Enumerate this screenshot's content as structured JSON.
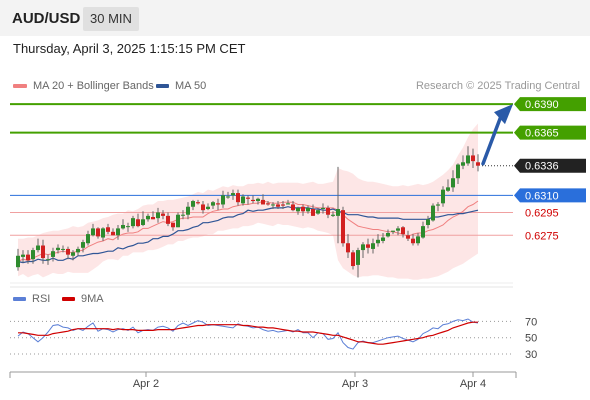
{
  "header": {
    "pair": "AUD/USD",
    "timeframe": "30 MIN"
  },
  "datetime": "Thursday, April 3, 2025 1:15:15 PM CET",
  "legend": {
    "ma20": "MA 20 + Bollinger Bands",
    "ma50": "MA 50",
    "rsi": "RSI",
    "ma9": "9MA",
    "credit": "Research © 2025 Trading Central"
  },
  "colors": {
    "ma20": "#f08080",
    "ma50": "#2f5596",
    "green": "#44a000",
    "blue": "#2a6fdb",
    "red": "#d00000",
    "dark": "#222222",
    "rsi": "#5b7fd6",
    "band": "#fde2e2"
  },
  "chart_data": {
    "type": "candlestick",
    "y_range": [
      0.6234,
      0.6398
    ],
    "current_price": "0.6336",
    "levels": [
      {
        "value": 0.639,
        "label": "0.6390",
        "kind": "resistance"
      },
      {
        "value": 0.6365,
        "label": "0.6365",
        "kind": "resistance"
      },
      {
        "value": 0.631,
        "label": "0.6310",
        "kind": "pivot"
      },
      {
        "value": 0.6295,
        "label": "0.6295",
        "kind": "support"
      },
      {
        "value": 0.6275,
        "label": "0.6275",
        "kind": "support"
      }
    ],
    "x_labels": [
      "Apr 2",
      "Apr 3",
      "Apr 4"
    ],
    "rsi_levels": [
      {
        "value": 70,
        "label": "70"
      },
      {
        "value": 50,
        "label": "50"
      },
      {
        "value": 30,
        "label": "30"
      }
    ],
    "candles": [
      [
        0.6247,
        0.6257,
        0.6263,
        0.6244
      ],
      [
        0.6256,
        0.6258,
        0.6262,
        0.6251
      ],
      [
        0.6258,
        0.6253,
        0.6262,
        0.625
      ],
      [
        0.6254,
        0.6262,
        0.6264,
        0.625
      ],
      [
        0.6262,
        0.6266,
        0.6272,
        0.626
      ],
      [
        0.6266,
        0.6255,
        0.6271,
        0.625
      ],
      [
        0.6254,
        0.6254,
        0.6258,
        0.6249
      ],
      [
        0.6256,
        0.6261,
        0.6264,
        0.6252
      ],
      [
        0.6262,
        0.6264,
        0.6267,
        0.6259
      ],
      [
        0.6263,
        0.6263,
        0.6266,
        0.626
      ],
      [
        0.6263,
        0.6258,
        0.6265,
        0.6254
      ],
      [
        0.6257,
        0.626,
        0.6262,
        0.6253
      ],
      [
        0.626,
        0.6263,
        0.6265,
        0.6257
      ],
      [
        0.6264,
        0.6269,
        0.6271,
        0.626
      ],
      [
        0.6268,
        0.6276,
        0.6279,
        0.6266
      ],
      [
        0.6275,
        0.6281,
        0.6285,
        0.6274
      ],
      [
        0.6281,
        0.6274,
        0.6282,
        0.6272
      ],
      [
        0.6273,
        0.6281,
        0.6282,
        0.627
      ],
      [
        0.6282,
        0.6278,
        0.6285,
        0.6276
      ],
      [
        0.6278,
        0.6275,
        0.6281,
        0.6275
      ],
      [
        0.6275,
        0.6281,
        0.6284,
        0.6271
      ],
      [
        0.6281,
        0.6284,
        0.6289,
        0.628
      ],
      [
        0.6283,
        0.6283,
        0.6286,
        0.6278
      ],
      [
        0.6283,
        0.629,
        0.6292,
        0.6281
      ],
      [
        0.6289,
        0.6283,
        0.6294,
        0.6282
      ],
      [
        0.6284,
        0.6289,
        0.6296,
        0.6283
      ],
      [
        0.6289,
        0.6292,
        0.6294,
        0.6287
      ],
      [
        0.6291,
        0.6289,
        0.6296,
        0.6289
      ],
      [
        0.629,
        0.6295,
        0.6299,
        0.6286
      ],
      [
        0.6294,
        0.6292,
        0.6297,
        0.6289
      ],
      [
        0.6292,
        0.6285,
        0.6295,
        0.6283
      ],
      [
        0.6286,
        0.6282,
        0.6286,
        0.6279
      ],
      [
        0.6282,
        0.6293,
        0.6295,
        0.6282
      ],
      [
        0.6293,
        0.6293,
        0.6297,
        0.6289
      ],
      [
        0.6293,
        0.63,
        0.6304,
        0.6289
      ],
      [
        0.63,
        0.6305,
        0.6306,
        0.6297
      ],
      [
        0.6304,
        0.6303,
        0.6306,
        0.6302
      ],
      [
        0.6302,
        0.6297,
        0.6305,
        0.6294
      ],
      [
        0.6298,
        0.63,
        0.6303,
        0.6297
      ],
      [
        0.6301,
        0.6304,
        0.6305,
        0.6298
      ],
      [
        0.6303,
        0.6302,
        0.6307,
        0.6297
      ],
      [
        0.6302,
        0.631,
        0.6314,
        0.6299
      ],
      [
        0.6309,
        0.6309,
        0.6313,
        0.6307
      ],
      [
        0.631,
        0.6312,
        0.6315,
        0.6306
      ],
      [
        0.6312,
        0.6304,
        0.6315,
        0.6301
      ],
      [
        0.6303,
        0.6309,
        0.6311,
        0.6301
      ],
      [
        0.6308,
        0.6307,
        0.631,
        0.6302
      ],
      [
        0.6306,
        0.6305,
        0.631,
        0.6303
      ],
      [
        0.6305,
        0.6307,
        0.6308,
        0.6302
      ],
      [
        0.6306,
        0.6302,
        0.6311,
        0.6302
      ],
      [
        0.6303,
        0.6302,
        0.6305,
        0.6301
      ],
      [
        0.6302,
        0.6302,
        0.6304,
        0.6298
      ],
      [
        0.6302,
        0.63,
        0.6305,
        0.6298
      ],
      [
        0.6302,
        0.6301,
        0.6305,
        0.6298
      ],
      [
        0.6302,
        0.6303,
        0.6306,
        0.6302
      ],
      [
        0.6302,
        0.6297,
        0.6305,
        0.6296
      ],
      [
        0.6296,
        0.6299,
        0.63,
        0.6293
      ],
      [
        0.63,
        0.6296,
        0.6302,
        0.6292
      ],
      [
        0.6296,
        0.6299,
        0.6301,
        0.6294
      ],
      [
        0.6298,
        0.6292,
        0.6302,
        0.6292
      ],
      [
        0.6294,
        0.6297,
        0.6299,
        0.6293
      ],
      [
        0.6298,
        0.6299,
        0.6303,
        0.6294
      ],
      [
        0.6299,
        0.6293,
        0.6301,
        0.629
      ],
      [
        0.6292,
        0.6293,
        0.6296,
        0.6291
      ],
      [
        0.6292,
        0.6298,
        0.6335,
        0.6268
      ],
      [
        0.6297,
        0.6268,
        0.63,
        0.6265
      ],
      [
        0.6268,
        0.626,
        0.6276,
        0.6255
      ],
      [
        0.626,
        0.6248,
        0.6262,
        0.6245
      ],
      [
        0.6249,
        0.6262,
        0.6264,
        0.6238
      ],
      [
        0.6262,
        0.6267,
        0.6269,
        0.6255
      ],
      [
        0.6267,
        0.6264,
        0.6272,
        0.6259
      ],
      [
        0.6263,
        0.6268,
        0.6272,
        0.6259
      ],
      [
        0.6268,
        0.6271,
        0.6276,
        0.6265
      ],
      [
        0.627,
        0.6273,
        0.6277,
        0.6268
      ],
      [
        0.6274,
        0.6277,
        0.628,
        0.6273
      ],
      [
        0.6278,
        0.6279,
        0.6279,
        0.6276
      ],
      [
        0.6279,
        0.6281,
        0.6283,
        0.6275
      ],
      [
        0.6282,
        0.6276,
        0.6283,
        0.6273
      ],
      [
        0.6275,
        0.6272,
        0.6279,
        0.627
      ],
      [
        0.6272,
        0.6268,
        0.6276,
        0.6266
      ],
      [
        0.6268,
        0.6274,
        0.6277,
        0.6266
      ],
      [
        0.6273,
        0.6283,
        0.6287,
        0.6272
      ],
      [
        0.6284,
        0.6289,
        0.6292,
        0.6281
      ],
      [
        0.6288,
        0.6301,
        0.6303,
        0.6287
      ],
      [
        0.6301,
        0.6302,
        0.6304,
        0.6296
      ],
      [
        0.6303,
        0.6315,
        0.6318,
        0.63
      ],
      [
        0.6314,
        0.6317,
        0.6324,
        0.6313
      ],
      [
        0.6317,
        0.6325,
        0.6332,
        0.6313
      ],
      [
        0.6325,
        0.6337,
        0.6338,
        0.632
      ],
      [
        0.6336,
        0.6339,
        0.6345,
        0.6333
      ],
      [
        0.6338,
        0.6345,
        0.6353,
        0.6336
      ],
      [
        0.6345,
        0.634,
        0.6351,
        0.6334
      ],
      [
        0.6339,
        0.6336,
        0.6346,
        0.6331
      ]
    ],
    "ma20": [
      0.6252,
      0.6254,
      0.6253,
      0.6255,
      0.6257,
      0.6259,
      0.6258,
      0.6259,
      0.626,
      0.6261,
      0.626,
      0.626,
      0.6261,
      0.6262,
      0.6265,
      0.6267,
      0.6269,
      0.627,
      0.6272,
      0.6271,
      0.6274,
      0.6276,
      0.6277,
      0.6277,
      0.6278,
      0.6281,
      0.6281,
      0.6283,
      0.6285,
      0.6287,
      0.6286,
      0.6287,
      0.6289,
      0.629,
      0.629,
      0.6291,
      0.6291,
      0.6291,
      0.6294,
      0.6296,
      0.6297,
      0.6298,
      0.6298,
      0.63,
      0.6301,
      0.6302,
      0.6302,
      0.6303,
      0.6303,
      0.6305,
      0.6304,
      0.6303,
      0.6303,
      0.6304,
      0.6304,
      0.6304,
      0.6302,
      0.6302,
      0.6301,
      0.63,
      0.6299,
      0.6299,
      0.6299,
      0.6299,
      0.6297,
      0.6293,
      0.6289,
      0.6286,
      0.6283,
      0.6282,
      0.6281,
      0.628,
      0.628,
      0.6279,
      0.6278,
      0.6278,
      0.6277,
      0.6276,
      0.6274,
      0.6276,
      0.6277,
      0.6277,
      0.6279,
      0.628,
      0.6282,
      0.6284,
      0.6288,
      0.6291,
      0.6293,
      0.6296,
      0.63,
      0.6302,
      0.6305
    ],
    "ma50": [
      0.6252,
      0.6251,
      0.6252,
      0.6252,
      0.6254,
      0.6253,
      0.6253,
      0.6255,
      0.6253,
      0.6253,
      0.6255,
      0.6254,
      0.6257,
      0.6257,
      0.6258,
      0.6259,
      0.6259,
      0.626,
      0.6261,
      0.6261,
      0.6264,
      0.6263,
      0.6265,
      0.6266,
      0.6268,
      0.6268,
      0.6269,
      0.6272,
      0.6272,
      0.6274,
      0.6274,
      0.6276,
      0.6279,
      0.6279,
      0.628,
      0.6282,
      0.6283,
      0.6286,
      0.6286,
      0.6287,
      0.6288,
      0.629,
      0.6291,
      0.6291,
      0.6293,
      0.6294,
      0.6297,
      0.6296,
      0.6297,
      0.6297,
      0.6298,
      0.6299,
      0.6299,
      0.6299,
      0.63,
      0.6299,
      0.6299,
      0.6299,
      0.6299,
      0.6298,
      0.6298,
      0.6297,
      0.6297,
      0.6298,
      0.6296,
      0.6295,
      0.6293,
      0.6293,
      0.6293,
      0.6292,
      0.6291,
      0.6291,
      0.629,
      0.629,
      0.629,
      0.629,
      0.629,
      0.6289,
      0.6289,
      0.6289,
      0.6289,
      0.6289,
      0.6289,
      0.6291,
      0.6291,
      0.6292,
      0.6293,
      0.6293,
      0.6294,
      0.6294,
      0.6295,
      0.6296,
      0.6297
    ],
    "bb_upper": [
      0.6272,
      0.6272,
      0.6273,
      0.6273,
      0.6275,
      0.6277,
      0.6278,
      0.6279,
      0.6279,
      0.628,
      0.6281,
      0.6283,
      0.6282,
      0.6283,
      0.6286,
      0.6287,
      0.6288,
      0.629,
      0.6291,
      0.6293,
      0.6294,
      0.6294,
      0.6297,
      0.6296,
      0.6298,
      0.6301,
      0.6302,
      0.6302,
      0.6305,
      0.6305,
      0.6306,
      0.6306,
      0.6307,
      0.6308,
      0.6309,
      0.6311,
      0.6313,
      0.6312,
      0.6315,
      0.6314,
      0.6316,
      0.6318,
      0.6317,
      0.6319,
      0.6318,
      0.6318,
      0.632,
      0.632,
      0.6321,
      0.632,
      0.6322,
      0.632,
      0.6321,
      0.6321,
      0.6321,
      0.6321,
      0.6321,
      0.632,
      0.6321,
      0.6322,
      0.632,
      0.632,
      0.6321,
      0.6322,
      0.6334,
      0.6332,
      0.6331,
      0.6329,
      0.6325,
      0.6323,
      0.6322,
      0.6322,
      0.6321,
      0.632,
      0.6319,
      0.6318,
      0.6318,
      0.6319,
      0.6318,
      0.6319,
      0.632,
      0.6319,
      0.632,
      0.6322,
      0.6325,
      0.6328,
      0.6332,
      0.6337,
      0.6345,
      0.6352,
      0.6361,
      0.6368,
      0.6373
    ],
    "bb_lower": [
      0.6239,
      0.6241,
      0.6238,
      0.624,
      0.6241,
      0.6238,
      0.624,
      0.6242,
      0.6241,
      0.6241,
      0.6243,
      0.6242,
      0.6242,
      0.6242,
      0.6242,
      0.6245,
      0.6248,
      0.6252,
      0.6254,
      0.6254,
      0.6253,
      0.6257,
      0.6257,
      0.626,
      0.626,
      0.626,
      0.6262,
      0.6262,
      0.6263,
      0.6265,
      0.6267,
      0.6267,
      0.627,
      0.627,
      0.6272,
      0.6273,
      0.6273,
      0.6274,
      0.6276,
      0.6276,
      0.6279,
      0.6279,
      0.628,
      0.6281,
      0.6281,
      0.6283,
      0.6283,
      0.6284,
      0.6286,
      0.6285,
      0.6284,
      0.6283,
      0.6285,
      0.6284,
      0.6284,
      0.6283,
      0.6282,
      0.6281,
      0.6282,
      0.6281,
      0.6279,
      0.6278,
      0.6277,
      0.6275,
      0.6253,
      0.6246,
      0.6243,
      0.624,
      0.6238,
      0.6239,
      0.6239,
      0.624,
      0.624,
      0.6239,
      0.6238,
      0.6238,
      0.6237,
      0.6237,
      0.6237,
      0.6236,
      0.6236,
      0.6237,
      0.6237,
      0.6238,
      0.6239,
      0.6241,
      0.6243,
      0.6246,
      0.6248,
      0.625,
      0.6253,
      0.6256,
      0.6259
    ],
    "rsi": [
      52,
      57,
      55,
      50,
      45,
      50,
      57,
      65,
      66,
      63,
      62,
      59,
      61,
      59,
      64,
      68,
      58,
      61,
      60,
      57,
      60,
      61,
      59,
      63,
      56,
      59,
      60,
      59,
      63,
      64,
      62,
      58,
      65,
      68,
      65,
      68,
      71,
      69,
      65,
      66,
      65,
      64,
      63,
      62,
      67,
      65,
      64,
      62,
      63,
      60,
      58,
      59,
      57,
      58,
      59,
      57,
      60,
      56,
      56,
      50,
      56,
      55,
      48,
      49,
      56,
      44,
      38,
      36,
      44,
      46,
      44,
      44,
      46,
      48,
      50,
      51,
      52,
      49,
      47,
      45,
      48,
      55,
      58,
      62,
      61,
      66,
      67,
      70,
      72,
      71,
      73,
      69,
      68
    ],
    "rsi_ma9": [
      56,
      56,
      55,
      54,
      53,
      53,
      53,
      55,
      56,
      57,
      58,
      60,
      61,
      61,
      61,
      61,
      61,
      61,
      61,
      60,
      61,
      60,
      60,
      60,
      59,
      59,
      59,
      59,
      60,
      60,
      60,
      60,
      61,
      62,
      63,
      64,
      65,
      65,
      66,
      66,
      66,
      66,
      66,
      66,
      66,
      65,
      65,
      64,
      63,
      63,
      62,
      62,
      61,
      60,
      59,
      58,
      58,
      57,
      57,
      57,
      56,
      55,
      54,
      53,
      53,
      51,
      49,
      47,
      45,
      45,
      44,
      43,
      42,
      42,
      43,
      44,
      45,
      46,
      47,
      48,
      49,
      50,
      52,
      53,
      55,
      57,
      59,
      62,
      64,
      66,
      68,
      69,
      69
    ],
    "forecast_arrow": {
      "from": 0.6336,
      "to": 0.639
    }
  }
}
